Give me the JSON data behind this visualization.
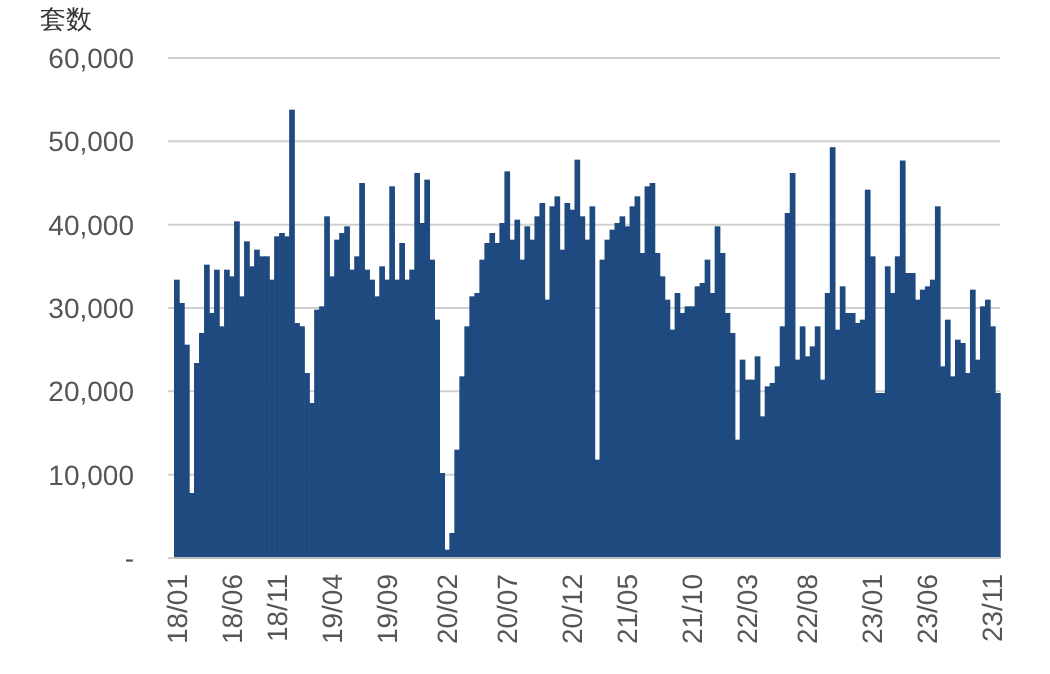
{
  "chart_data": {
    "type": "bar",
    "ylabel": "套数",
    "color": "#1f4a80",
    "categories": [
      "18/01",
      null,
      null,
      null,
      null,
      null,
      null,
      null,
      null,
      null,
      null,
      "18/06",
      null,
      null,
      null,
      null,
      null,
      null,
      null,
      null,
      "18/11",
      null,
      null,
      null,
      null,
      null,
      null,
      null,
      null,
      null,
      null,
      "19/04",
      null,
      null,
      null,
      null,
      null,
      null,
      null,
      null,
      null,
      null,
      "19/09",
      null,
      null,
      null,
      null,
      null,
      null,
      null,
      null,
      null,
      null,
      null,
      "20/02",
      null,
      null,
      null,
      null,
      null,
      null,
      null,
      null,
      null,
      null,
      null,
      "20/07",
      null,
      null,
      null,
      null,
      null,
      null,
      null,
      null,
      null,
      null,
      null,
      null,
      "20/12",
      null,
      null,
      null,
      null,
      null,
      null,
      null,
      null,
      null,
      null,
      "21/05",
      null,
      null,
      null,
      null,
      null,
      null,
      null,
      null,
      null,
      null,
      null,
      null,
      "21/10",
      null,
      null,
      null,
      null,
      null,
      null,
      null,
      null,
      null,
      null,
      "22/03",
      null,
      null,
      null,
      null,
      null,
      null,
      null,
      null,
      null,
      null,
      null,
      "22/08",
      null,
      null,
      null,
      null,
      null,
      null,
      null,
      null,
      null,
      null,
      null,
      null,
      "23/01",
      null,
      null,
      null,
      null,
      null,
      null,
      null,
      null,
      null,
      null,
      "23/06",
      null,
      null,
      null,
      null,
      null,
      null,
      null,
      null,
      null,
      null,
      null,
      null,
      "23/11",
      null
    ],
    "values": [
      33400,
      30600,
      25600,
      7800,
      23400,
      27000,
      35200,
      29400,
      34600,
      27800,
      34600,
      33800,
      40400,
      31400,
      38000,
      35000,
      37000,
      36200,
      36200,
      33400,
      38600,
      39000,
      38600,
      53800,
      28200,
      27800,
      22200,
      18600,
      29800,
      30200,
      41000,
      33800,
      38200,
      39000,
      39800,
      34600,
      36200,
      45000,
      34600,
      33400,
      31400,
      35000,
      33400,
      44600,
      33400,
      37800,
      33400,
      34600,
      46200,
      40200,
      45400,
      35800,
      28600,
      10200,
      1000,
      3000,
      13000,
      21800,
      27800,
      31400,
      31800,
      35800,
      37800,
      39000,
      37800,
      40200,
      46400,
      38200,
      40600,
      35800,
      39800,
      38200,
      41000,
      42600,
      31000,
      42200,
      43400,
      37000,
      42600,
      41800,
      47800,
      41000,
      38200,
      42200,
      11800,
      35800,
      38200,
      39400,
      40200,
      41000,
      39800,
      42200,
      43400,
      36600,
      44600,
      45000,
      36600,
      33800,
      31000,
      27400,
      31800,
      29400,
      30200,
      30200,
      32600,
      33000,
      35800,
      31800,
      39800,
      36600,
      29400,
      27000,
      14200,
      23800,
      21400,
      21400,
      24200,
      17000,
      20600,
      21000,
      23000,
      27800,
      41400,
      46200,
      23800,
      27800,
      24200,
      25400,
      27800,
      21400,
      31800,
      49300,
      27400,
      32600,
      29400,
      29400,
      28200,
      28600,
      44200,
      36200,
      19800,
      19800,
      35000,
      31800,
      36200,
      47700,
      34200,
      34200,
      31000,
      32200,
      32600,
      33400,
      42200,
      23000,
      28600,
      21800,
      26200,
      25800,
      22200,
      32200,
      23800,
      30200,
      31000,
      27800,
      19800
    ],
    "ylim": [
      0,
      60000
    ],
    "yticks": [
      {
        "value": 0,
        "label": "-"
      },
      {
        "value": 10000,
        "label": "10,000"
      },
      {
        "value": 20000,
        "label": "20,000"
      },
      {
        "value": 30000,
        "label": "30,000"
      },
      {
        "value": 40000,
        "label": "40,000"
      },
      {
        "value": 50000,
        "label": "50,000"
      },
      {
        "value": 60000,
        "label": "60,000"
      }
    ],
    "grid": "y"
  }
}
